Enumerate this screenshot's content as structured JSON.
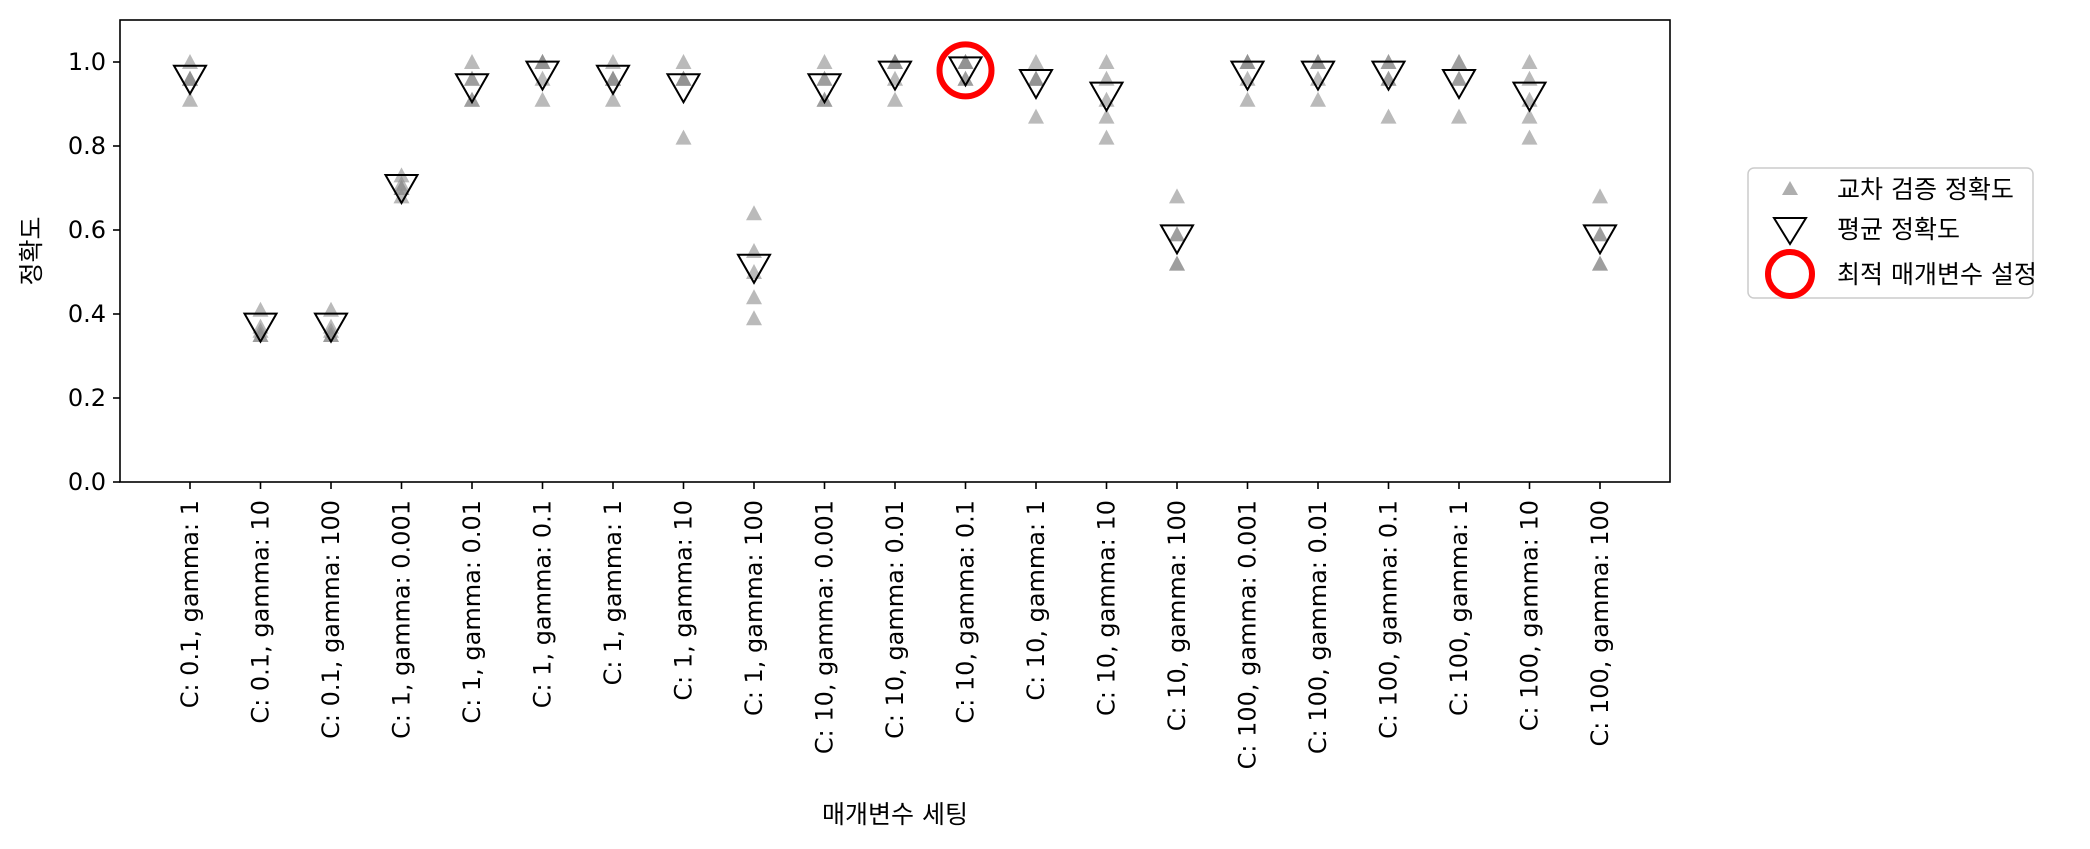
{
  "chart_data": {
    "type": "scatter",
    "title": "",
    "xlabel": "매개변수 세팅",
    "ylabel": "정확도",
    "ylim": [
      0,
      1.1
    ],
    "yticks": [
      "0.0",
      "0.2",
      "0.4",
      "0.6",
      "0.8",
      "1.0"
    ],
    "ytick_values": [
      0.0,
      0.2,
      0.4,
      0.6,
      0.8,
      1.0
    ],
    "categories": [
      "C: 0.1, gamma: 1",
      "C: 0.1, gamma: 10",
      "C: 0.1, gamma: 100",
      "C: 1, gamma: 0.001",
      "C: 1, gamma: 0.01",
      "C: 1, gamma: 0.1",
      "C: 1, gamma: 1",
      "C: 1, gamma: 10",
      "C: 1, gamma: 100",
      "C: 10, gamma: 0.001",
      "C: 10, gamma: 0.01",
      "C: 10, gamma: 0.1",
      "C: 10, gamma: 1",
      "C: 10, gamma: 10",
      "C: 10, gamma: 100",
      "C: 100, gamma: 0.001",
      "C: 100, gamma: 0.01",
      "C: 100, gamma: 0.1",
      "C: 100, gamma: 1",
      "C: 100, gamma: 10",
      "C: 100, gamma: 100"
    ],
    "series": [
      {
        "name": "교차 검증 정확도",
        "marker": "triangle-up",
        "color": "#8c8c8c",
        "values": [
          [
            1.0,
            0.96,
            0.91,
            0.96,
            0.96
          ],
          [
            0.41,
            0.35,
            0.36,
            0.37,
            0.35
          ],
          [
            0.41,
            0.35,
            0.36,
            0.37,
            0.35
          ],
          [
            0.73,
            0.7,
            0.68,
            0.7,
            0.71
          ],
          [
            1.0,
            0.96,
            0.91,
            0.91,
            0.96
          ],
          [
            1.0,
            1.0,
            0.91,
            0.96,
            1.0
          ],
          [
            1.0,
            0.96,
            0.91,
            0.96,
            0.96
          ],
          [
            1.0,
            0.96,
            0.82,
            0.96,
            0.96
          ],
          [
            0.64,
            0.55,
            0.44,
            0.39,
            0.5
          ],
          [
            1.0,
            0.96,
            0.91,
            0.91,
            0.96
          ],
          [
            1.0,
            1.0,
            0.91,
            0.96,
            1.0
          ],
          [
            1.0,
            1.0,
            0.96,
            0.96,
            1.0
          ],
          [
            1.0,
            0.96,
            0.87,
            0.96,
            0.96
          ],
          [
            1.0,
            0.96,
            0.82,
            0.87,
            0.91
          ],
          [
            0.68,
            0.59,
            0.52,
            0.52,
            0.59
          ],
          [
            1.0,
            1.0,
            0.91,
            0.96,
            1.0
          ],
          [
            1.0,
            1.0,
            0.91,
            0.96,
            1.0
          ],
          [
            1.0,
            0.96,
            0.87,
            0.96,
            1.0
          ],
          [
            1.0,
            0.96,
            0.87,
            0.96,
            1.0
          ],
          [
            1.0,
            0.96,
            0.82,
            0.87,
            0.91
          ],
          [
            0.68,
            0.59,
            0.52,
            0.52,
            0.59
          ]
        ]
      },
      {
        "name": "평균 정확도",
        "marker": "triangle-down",
        "color": "#000000",
        "values": [
          0.96,
          0.37,
          0.37,
          0.7,
          0.94,
          0.97,
          0.96,
          0.94,
          0.51,
          0.94,
          0.97,
          0.98,
          0.95,
          0.92,
          0.58,
          0.97,
          0.97,
          0.97,
          0.95,
          0.92,
          0.58
        ]
      },
      {
        "name": "최적 매개변수 설정",
        "marker": "circle",
        "color": "#ff0000",
        "category_index": 11,
        "value": 0.98
      }
    ],
    "legend_position": "right, outside plot area",
    "grid": false
  }
}
